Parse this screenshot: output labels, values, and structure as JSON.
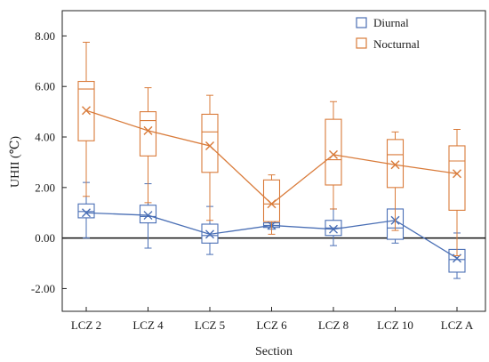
{
  "chart_data": {
    "type": "box",
    "xlabel": "Section",
    "ylabel": "UHII (℃)",
    "ylim": [
      -2.9,
      9.0
    ],
    "yticks": [
      -2.0,
      0.0,
      2.0,
      4.0,
      6.0,
      8.0
    ],
    "ytick_labels": [
      "-2.00",
      "0.00",
      "2.00",
      "4.00",
      "6.00",
      "8.00"
    ],
    "categories": [
      "LCZ 2",
      "LCZ 4",
      "LCZ 5",
      "LCZ 6",
      "LCZ 8",
      "LCZ 10",
      "LCZ A"
    ],
    "reference_line_y": 0.0,
    "legend_position": "top-right",
    "series": [
      {
        "name": "Diurnal",
        "color": "#4a6fb5",
        "mean_marker": "x",
        "means": [
          1.0,
          0.9,
          0.15,
          0.5,
          0.35,
          0.7,
          -0.8
        ],
        "boxes": [
          {
            "min": 0.0,
            "q1": 0.8,
            "median": 1.05,
            "q3": 1.35,
            "max": 2.2,
            "outliers": []
          },
          {
            "min": -0.4,
            "q1": 0.6,
            "median": 0.85,
            "q3": 1.3,
            "max": 2.15,
            "outliers": []
          },
          {
            "min": -0.65,
            "q1": -0.2,
            "median": 0.1,
            "q3": 0.55,
            "max": 1.25,
            "outliers": []
          },
          {
            "min": 0.35,
            "q1": 0.42,
            "median": 0.5,
            "q3": 0.6,
            "max": 0.7,
            "outliers": [
              0.9
            ]
          },
          {
            "min": -0.3,
            "q1": 0.1,
            "median": 0.4,
            "q3": 0.7,
            "max": 1.15,
            "outliers": []
          },
          {
            "min": -0.2,
            "q1": -0.05,
            "median": 0.4,
            "q3": 1.15,
            "max": 3.05,
            "outliers": []
          },
          {
            "min": -1.6,
            "q1": -1.35,
            "median": -0.85,
            "q3": -0.45,
            "max": 0.2,
            "outliers": []
          }
        ]
      },
      {
        "name": "Nocturnal",
        "color": "#d97b3a",
        "mean_marker": "x",
        "means": [
          5.05,
          4.25,
          3.65,
          1.35,
          3.3,
          2.9,
          2.55
        ],
        "boxes": [
          {
            "min": 1.65,
            "q1": 3.85,
            "median": 5.9,
            "q3": 6.2,
            "max": 7.75,
            "outliers": []
          },
          {
            "min": 1.4,
            "q1": 3.25,
            "median": 4.65,
            "q3": 5.0,
            "max": 5.95,
            "outliers": []
          },
          {
            "min": 0.7,
            "q1": 2.6,
            "median": 4.2,
            "q3": 4.9,
            "max": 5.65,
            "outliers": []
          },
          {
            "min": 0.15,
            "q1": 0.65,
            "median": 1.35,
            "q3": 2.3,
            "max": 2.5,
            "outliers": []
          },
          {
            "min": 1.15,
            "q1": 2.1,
            "median": 3.1,
            "q3": 4.7,
            "max": 5.4,
            "outliers": []
          },
          {
            "min": 0.3,
            "q1": 2.0,
            "median": 3.3,
            "q3": 3.9,
            "max": 4.2,
            "outliers": []
          },
          {
            "min": -0.7,
            "q1": 1.1,
            "median": 3.05,
            "q3": 3.65,
            "max": 4.3,
            "outliers": []
          }
        ]
      }
    ]
  }
}
